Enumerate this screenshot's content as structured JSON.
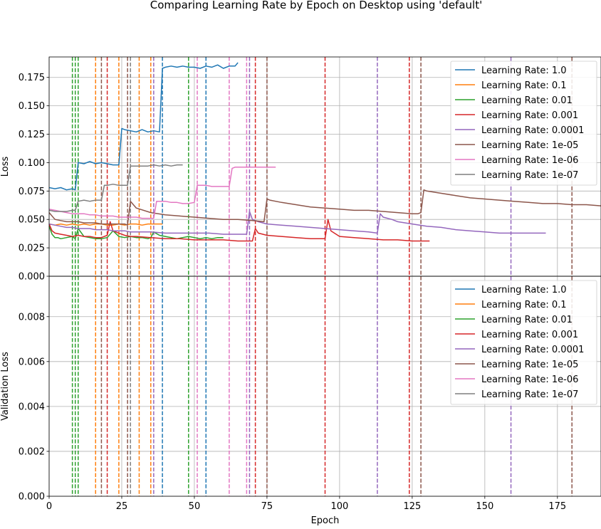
{
  "chart_data": {
    "type": "line",
    "title": "Comparing Learning Rate by Epoch on Desktop using 'default'",
    "xlabel": "Epoch",
    "xlim": [
      0,
      190
    ],
    "xticks": [
      0,
      25,
      50,
      75,
      100,
      125,
      150,
      175
    ],
    "grid": true,
    "legend_placement": "upper right",
    "colors": [
      "#1f77b4",
      "#ff7f0e",
      "#2ca02c",
      "#d62728",
      "#9467bd",
      "#8c564b",
      "#e377c2",
      "#7f7f7f"
    ],
    "panels": [
      {
        "ylabel": "Loss",
        "ylim": [
          0,
          0.193
        ],
        "yticks": [
          0.0,
          0.025,
          0.05,
          0.075,
          0.1,
          0.125,
          0.15,
          0.175
        ],
        "ytick_labels": [
          "0.000",
          "0.025",
          "0.050",
          "0.075",
          "0.100",
          "0.125",
          "0.150",
          "0.175"
        ],
        "series": [
          {
            "name": "Learning Rate: 1.0",
            "color": "#1f77b4",
            "x": [
              0,
              2,
              4,
              6,
              8,
              9,
              10,
              12,
              14,
              16,
              18,
              20,
              22,
              24,
              25,
              26,
              28,
              30,
              32,
              34,
              36,
              38,
              39,
              40,
              42,
              44,
              46,
              48,
              50,
              52,
              54,
              56,
              58,
              60,
              62,
              64,
              65
            ],
            "y": [
              0.078,
              0.077,
              0.078,
              0.076,
              0.077,
              0.076,
              0.1,
              0.099,
              0.101,
              0.099,
              0.1,
              0.099,
              0.098,
              0.098,
              0.13,
              0.129,
              0.128,
              0.127,
              0.129,
              0.127,
              0.128,
              0.127,
              0.183,
              0.184,
              0.185,
              0.184,
              0.185,
              0.184,
              0.184,
              0.183,
              0.185,
              0.184,
              0.186,
              0.183,
              0.185,
              0.185,
              0.188
            ]
          },
          {
            "name": "Learning Rate: 0.1",
            "color": "#ff7f0e",
            "x": [
              0,
              2,
              4,
              6,
              8,
              10,
              12,
              14,
              16,
              18,
              20,
              22,
              24,
              26,
              28,
              30,
              32,
              34,
              36,
              38,
              39
            ],
            "y": [
              0.046,
              0.045,
              0.046,
              0.045,
              0.046,
              0.045,
              0.046,
              0.045,
              0.046,
              0.046,
              0.045,
              0.045,
              0.046,
              0.045,
              0.046,
              0.046,
              0.045,
              0.046,
              0.046,
              0.046,
              0.046
            ]
          },
          {
            "name": "Learning Rate: 0.01",
            "color": "#2ca02c",
            "x": [
              0,
              1,
              2,
              3,
              4,
              6,
              8,
              9,
              10,
              12,
              14,
              16,
              18,
              20,
              22,
              24,
              26,
              28,
              30,
              32,
              34,
              35,
              36,
              38,
              40,
              42,
              44,
              46,
              48,
              50,
              52,
              54,
              56,
              58,
              60
            ],
            "y": [
              0.044,
              0.037,
              0.034,
              0.034,
              0.033,
              0.034,
              0.035,
              0.033,
              0.042,
              0.035,
              0.034,
              0.033,
              0.033,
              0.034,
              0.04,
              0.035,
              0.034,
              0.035,
              0.034,
              0.034,
              0.033,
              0.034,
              0.039,
              0.036,
              0.035,
              0.034,
              0.033,
              0.034,
              0.035,
              0.034,
              0.033,
              0.034,
              0.033,
              0.034,
              0.034
            ]
          },
          {
            "name": "Learning Rate: 0.001",
            "color": "#d62728",
            "x": [
              0,
              1,
              2,
              4,
              6,
              8,
              10,
              12,
              14,
              16,
              18,
              20,
              21,
              22,
              24,
              26,
              28,
              30,
              35,
              40,
              45,
              50,
              55,
              60,
              65,
              70,
              71,
              72,
              75,
              80,
              85,
              90,
              95,
              96,
              97,
              100,
              105,
              110,
              115,
              120,
              125,
              128,
              131
            ],
            "y": [
              0.046,
              0.04,
              0.038,
              0.037,
              0.036,
              0.035,
              0.036,
              0.035,
              0.035,
              0.034,
              0.034,
              0.036,
              0.048,
              0.04,
              0.038,
              0.036,
              0.035,
              0.035,
              0.034,
              0.033,
              0.033,
              0.032,
              0.032,
              0.032,
              0.031,
              0.031,
              0.042,
              0.038,
              0.036,
              0.035,
              0.034,
              0.033,
              0.033,
              0.05,
              0.04,
              0.035,
              0.034,
              0.033,
              0.032,
              0.032,
              0.031,
              0.031,
              0.031
            ]
          },
          {
            "name": "Learning Rate: 0.0001",
            "color": "#9467bd",
            "x": [
              0,
              2,
              4,
              6,
              8,
              10,
              12,
              14,
              16,
              18,
              20,
              22,
              24,
              26,
              28,
              30,
              35,
              40,
              45,
              50,
              55,
              60,
              65,
              68,
              69,
              70,
              72,
              75,
              80,
              85,
              90,
              95,
              100,
              105,
              110,
              113,
              114,
              115,
              118,
              120,
              125,
              130,
              135,
              140,
              145,
              150,
              155,
              159,
              160,
              165,
              171
            ],
            "y": [
              0.046,
              0.045,
              0.044,
              0.043,
              0.043,
              0.042,
              0.042,
              0.042,
              0.041,
              0.041,
              0.041,
              0.04,
              0.04,
              0.04,
              0.039,
              0.039,
              0.039,
              0.038,
              0.038,
              0.038,
              0.038,
              0.037,
              0.037,
              0.037,
              0.057,
              0.05,
              0.048,
              0.046,
              0.045,
              0.044,
              0.043,
              0.042,
              0.041,
              0.04,
              0.039,
              0.038,
              0.055,
              0.052,
              0.05,
              0.048,
              0.046,
              0.044,
              0.043,
              0.041,
              0.04,
              0.039,
              0.038,
              0.038,
              0.038,
              0.038,
              0.038
            ]
          },
          {
            "name": "Learning Rate: 1e-05",
            "color": "#8c564b",
            "x": [
              0,
              2,
              4,
              6,
              8,
              10,
              12,
              14,
              16,
              18,
              20,
              22,
              24,
              26,
              27,
              28,
              30,
              35,
              40,
              45,
              50,
              55,
              60,
              65,
              70,
              74,
              75,
              76,
              80,
              85,
              90,
              95,
              100,
              105,
              110,
              115,
              120,
              125,
              127,
              128,
              129,
              130,
              135,
              140,
              145,
              150,
              155,
              160,
              165,
              170,
              175,
              180,
              185,
              190
            ],
            "y": [
              0.056,
              0.05,
              0.049,
              0.048,
              0.048,
              0.048,
              0.047,
              0.047,
              0.047,
              0.046,
              0.046,
              0.046,
              0.046,
              0.046,
              0.045,
              0.066,
              0.06,
              0.056,
              0.054,
              0.053,
              0.052,
              0.051,
              0.05,
              0.05,
              0.049,
              0.048,
              0.068,
              0.067,
              0.065,
              0.063,
              0.061,
              0.06,
              0.059,
              0.058,
              0.058,
              0.057,
              0.056,
              0.055,
              0.055,
              0.056,
              0.076,
              0.075,
              0.073,
              0.071,
              0.069,
              0.068,
              0.067,
              0.066,
              0.065,
              0.064,
              0.064,
              0.063,
              0.063,
              0.062
            ]
          },
          {
            "name": "Learning Rate: 1e-06",
            "color": "#e377c2",
            "x": [
              0,
              2,
              4,
              6,
              8,
              10,
              12,
              14,
              16,
              18,
              20,
              22,
              24,
              26,
              27,
              28,
              30,
              32,
              34,
              36,
              37,
              38,
              40,
              42,
              44,
              46,
              48,
              50,
              51,
              52,
              54,
              56,
              58,
              60,
              62,
              63,
              64,
              66,
              68,
              70,
              72,
              75,
              78
            ],
            "y": [
              0.059,
              0.058,
              0.057,
              0.056,
              0.055,
              0.055,
              0.055,
              0.054,
              0.054,
              0.053,
              0.053,
              0.053,
              0.052,
              0.052,
              0.052,
              0.052,
              0.052,
              0.051,
              0.051,
              0.051,
              0.066,
              0.066,
              0.066,
              0.065,
              0.065,
              0.064,
              0.064,
              0.065,
              0.08,
              0.08,
              0.08,
              0.079,
              0.079,
              0.079,
              0.079,
              0.095,
              0.096,
              0.096,
              0.096,
              0.096,
              0.096,
              0.096,
              0.096
            ]
          },
          {
            "name": "Learning Rate: 1e-07",
            "color": "#7f7f7f",
            "x": [
              0,
              2,
              4,
              6,
              8,
              9,
              10,
              12,
              14,
              16,
              18,
              19,
              20,
              22,
              24,
              26,
              27,
              28,
              30,
              32,
              34,
              36,
              38,
              40,
              42,
              44,
              46
            ],
            "y": [
              0.058,
              0.057,
              0.057,
              0.057,
              0.058,
              0.058,
              0.066,
              0.067,
              0.066,
              0.067,
              0.067,
              0.08,
              0.08,
              0.081,
              0.08,
              0.08,
              0.08,
              0.097,
              0.097,
              0.097,
              0.097,
              0.098,
              0.097,
              0.098,
              0.097,
              0.098,
              0.098
            ]
          }
        ]
      },
      {
        "ylabel": "Validation Loss",
        "ylim": [
          0,
          0.0098
        ],
        "yticks": [
          0.0,
          0.002,
          0.004,
          0.006,
          0.008
        ],
        "ytick_labels": [
          "0.000",
          "0.002",
          "0.004",
          "0.006",
          "0.008"
        ],
        "series": []
      }
    ],
    "vlines": [
      {
        "x": 8,
        "color": "#2ca02c"
      },
      {
        "x": 9,
        "color": "#2ca02c"
      },
      {
        "x": 10,
        "color": "#2ca02c"
      },
      {
        "x": 16,
        "color": "#ff7f0e"
      },
      {
        "x": 24,
        "color": "#ff7f0e"
      },
      {
        "x": 31,
        "color": "#ff7f0e"
      },
      {
        "x": 35,
        "color": "#ff7f0e"
      },
      {
        "x": 18,
        "color": "#8c564b"
      },
      {
        "x": 27,
        "color": "#8c564b"
      },
      {
        "x": 75,
        "color": "#8c564b"
      },
      {
        "x": 128,
        "color": "#8c564b"
      },
      {
        "x": 180,
        "color": "#8c564b"
      },
      {
        "x": 20,
        "color": "#d62728"
      },
      {
        "x": 71,
        "color": "#d62728"
      },
      {
        "x": 95,
        "color": "#d62728"
      },
      {
        "x": 124,
        "color": "#d62728"
      },
      {
        "x": 28,
        "color": "#7f7f7f"
      },
      {
        "x": 36,
        "color": "#9467bd"
      },
      {
        "x": 69,
        "color": "#9467bd"
      },
      {
        "x": 113,
        "color": "#9467bd"
      },
      {
        "x": 159,
        "color": "#9467bd"
      },
      {
        "x": 39,
        "color": "#1f77b4"
      },
      {
        "x": 54,
        "color": "#1f77b4"
      },
      {
        "x": 48,
        "color": "#2ca02c"
      },
      {
        "x": 51,
        "color": "#e377c2"
      },
      {
        "x": 62,
        "color": "#e377c2"
      },
      {
        "x": 68,
        "color": "#e377c2"
      }
    ],
    "legend": [
      "Learning Rate: 1.0",
      "Learning Rate: 0.1",
      "Learning Rate: 0.01",
      "Learning Rate: 0.001",
      "Learning Rate: 0.0001",
      "Learning Rate: 1e-05",
      "Learning Rate: 1e-06",
      "Learning Rate: 1e-07"
    ]
  }
}
